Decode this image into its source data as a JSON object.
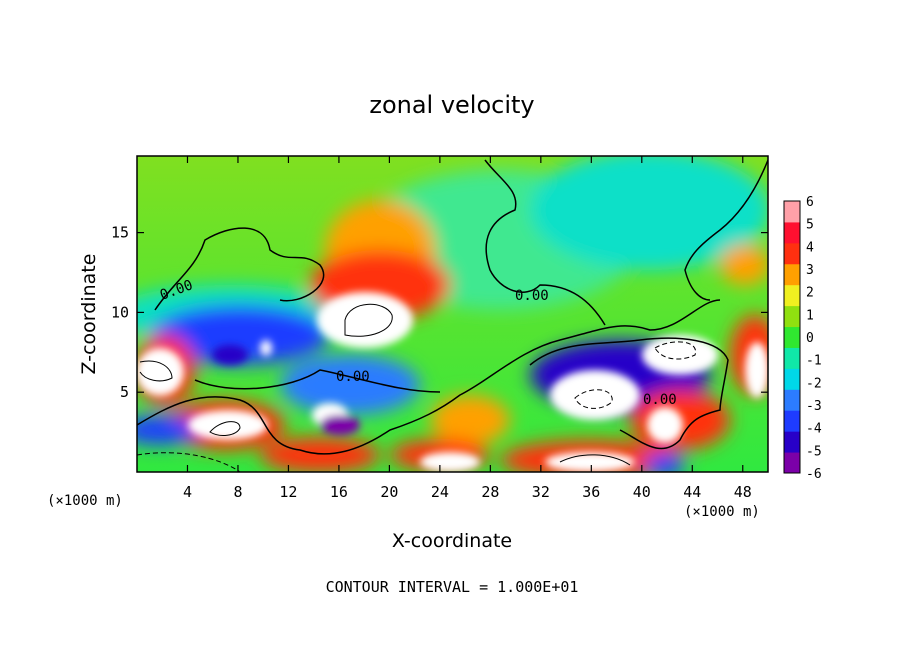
{
  "chart_data": {
    "type": "heatmap",
    "title": "zonal velocity",
    "xlabel": "X-coordinate",
    "ylabel": "Z-coordinate",
    "x_unit": "(×1000 m)",
    "x_ticks": [
      4,
      8,
      12,
      16,
      20,
      24,
      28,
      32,
      36,
      40,
      44,
      48
    ],
    "y_ticks": [
      5,
      10,
      15
    ],
    "xlim": [
      0,
      50
    ],
    "ylim": [
      0,
      19.8
    ],
    "colorbar": {
      "ticks": [
        6,
        5,
        4,
        3,
        2,
        1,
        0,
        -1,
        -2,
        -3,
        -4,
        -5,
        -6
      ],
      "range": [
        -6,
        6
      ],
      "colors": [
        "#7b00a8",
        "#2800c8",
        "#1e3cff",
        "#2c7cff",
        "#00d8e8",
        "#10e8a8",
        "#30e830",
        "#90e010",
        "#f0f020",
        "#ffa000",
        "#ff3010",
        "#ff1030",
        "#ffa0a8"
      ]
    },
    "contour_labels": [
      "0.00",
      "0.00",
      "0.00",
      "0.00"
    ],
    "footer": "CONTOUR INTERVAL = 1.000E+01"
  }
}
